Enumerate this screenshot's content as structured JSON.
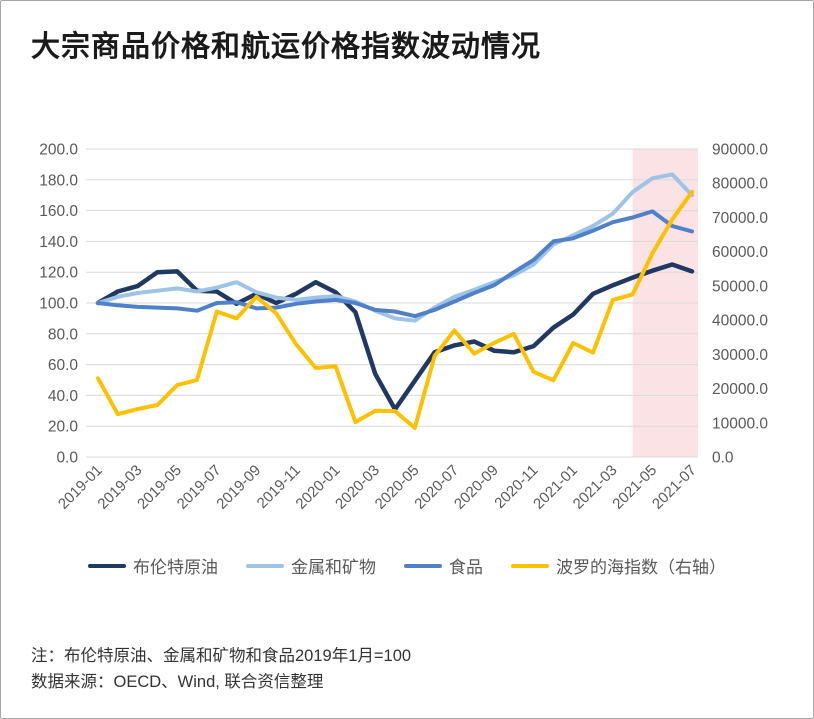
{
  "title": "大宗商品价格和航运价格指数波动情况",
  "notes": {
    "line1": "注：布伦特原油、金属和矿物和食品2019年1月=100",
    "line2": "数据来源：OECD、Wind, 联合资信整理"
  },
  "colors": {
    "brent": "#1F3864",
    "metals_minerals": "#9DC3E6",
    "food": "#4E81C8",
    "baltic": "#FFC000",
    "highlight_band": "rgba(230,112,123,0.20)",
    "gridline": "#D9D9D9",
    "tick_text": "#595959"
  },
  "chart_data": {
    "type": "line",
    "categories": [
      "2019-01",
      "2019-02",
      "2019-03",
      "2019-04",
      "2019-05",
      "2019-06",
      "2019-07",
      "2019-08",
      "2019-09",
      "2019-10",
      "2019-11",
      "2019-12",
      "2020-01",
      "2020-02",
      "2020-03",
      "2020-04",
      "2020-05",
      "2020-06",
      "2020-07",
      "2020-08",
      "2020-09",
      "2020-10",
      "2020-11",
      "2020-12",
      "2021-01",
      "2021-02",
      "2021-03",
      "2021-04",
      "2021-05",
      "2021-06",
      "2021-07"
    ],
    "x_labels_shown_every": 2,
    "left_axis": {
      "min": 0,
      "max": 200,
      "step": 20,
      "tick_format_decimals": 1
    },
    "right_axis": {
      "min": 0,
      "max": 90000,
      "step": 10000,
      "tick_format_decimals": 1
    },
    "grid": "horizontal",
    "legend_position": "bottom",
    "series": [
      {
        "key": "brent",
        "name": "布伦特原油",
        "axis": "left",
        "color": "#1F3864",
        "values": [
          100,
          107.5,
          111,
          120,
          120.5,
          108,
          107.5,
          99.5,
          106,
          100,
          106,
          113.5,
          107,
          94,
          54,
          31,
          49.5,
          68,
          72.5,
          75,
          69,
          68,
          72,
          84,
          92.5,
          106,
          111.5,
          116.5,
          121,
          125,
          120.5
        ]
      },
      {
        "key": "metals-minerals",
        "name": "金属和矿物",
        "axis": "left",
        "color": "#9DC3E6",
        "values": [
          100,
          104,
          106.5,
          108,
          109.5,
          107.5,
          110,
          113.5,
          107,
          103.5,
          102,
          103.5,
          104.5,
          101,
          95,
          90,
          88.5,
          97,
          104,
          108.5,
          113.5,
          118,
          125,
          138,
          144,
          150,
          158,
          172,
          181,
          183.5,
          170
        ]
      },
      {
        "key": "food",
        "name": "食品",
        "axis": "left",
        "color": "#4E81C8",
        "values": [
          100,
          98.5,
          97.5,
          97,
          96.5,
          95,
          100,
          100.5,
          96.5,
          97,
          99.5,
          101,
          102,
          100,
          95.5,
          94.5,
          91.5,
          95.5,
          101,
          106.5,
          111.5,
          120,
          128,
          140,
          142,
          147,
          152.5,
          155.5,
          159.5,
          150,
          146.5
        ]
      },
      {
        "key": "baltic-index",
        "name": "波罗的海指数（右轴）",
        "axis": "right",
        "color": "#FFC000",
        "values": [
          23000,
          12500,
          14000,
          15200,
          21000,
          22500,
          42500,
          40500,
          46800,
          42000,
          33000,
          26000,
          26500,
          10200,
          13500,
          13400,
          8500,
          29500,
          37000,
          30200,
          33300,
          36000,
          24900,
          22400,
          33300,
          30500,
          45900,
          47500,
          59500,
          69400,
          77500
        ]
      }
    ],
    "highlight_band": {
      "from_category": "2021-04",
      "to": "plot-right-edge",
      "covers": "2021-05 至 2021-07",
      "color": "rgba(230,112,123,0.20)"
    }
  }
}
